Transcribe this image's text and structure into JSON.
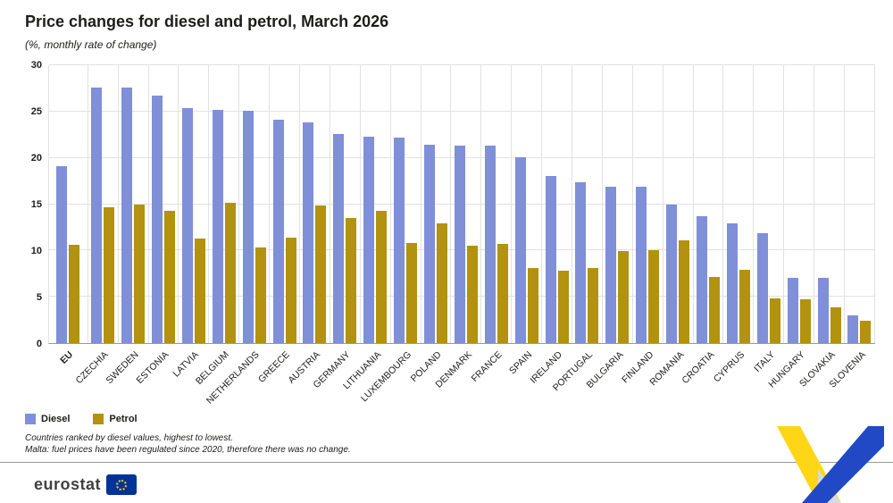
{
  "title": "Price changes for diesel and petrol, March 2026",
  "subtitle": "(%, monthly rate of change)",
  "legend": [
    {
      "label": "Diesel",
      "color": "#7f8fd8"
    },
    {
      "label": "Petrol",
      "color": "#b2920f"
    }
  ],
  "footnotes": [
    "Countries ranked by diesel values, highest to lowest.",
    "Malta: fuel prices have been regulated since 2020, therefore there was no change."
  ],
  "footer": {
    "logo_text": "eurostat"
  },
  "colors": {
    "diesel": "#7f8fd8",
    "petrol": "#b2920f",
    "eu_flag_blue": "#003399",
    "ribbon_yellow": "#ffd617",
    "ribbon_blue": "#2149c6"
  },
  "chart_data": {
    "type": "bar",
    "title": "Price changes for diesel and petrol, March 2026",
    "subtitle": "(%, monthly rate of change)",
    "xlabel": "",
    "ylabel": "",
    "ylim": [
      0,
      30
    ],
    "yticks": [
      0,
      5,
      10,
      15,
      20,
      25,
      30
    ],
    "grid": true,
    "legend_position": "bottom-left",
    "categories": [
      "EU",
      "CZECHIA",
      "SWEDEN",
      "ESTONIA",
      "LATVIA",
      "BELGIUM",
      "NETHERLANDS",
      "GREECE",
      "AUSTRIA",
      "GERMANY",
      "LITHUANIA",
      "LUXEMBOURG",
      "POLAND",
      "DENMARK",
      "FRANCE",
      "SPAIN",
      "IRELAND",
      "PORTUGAL",
      "BULGARIA",
      "FINLAND",
      "ROMANIA",
      "CROATIA",
      "CYPRUS",
      "ITALY",
      "HUNGARY",
      "SLOVAKIA",
      "SLOVENIA"
    ],
    "series": [
      {
        "name": "Diesel",
        "color": "#7f8fd8",
        "values": [
          19.1,
          27.6,
          27.6,
          26.7,
          25.4,
          25.2,
          25.1,
          24.1,
          23.8,
          22.6,
          22.3,
          22.2,
          21.4,
          21.3,
          21.3,
          20.1,
          18.0,
          17.4,
          16.9,
          16.9,
          15.0,
          13.7,
          12.9,
          11.9,
          7.0,
          7.0,
          3.0
        ]
      },
      {
        "name": "Petrol",
        "color": "#b2920f",
        "values": [
          10.6,
          14.7,
          15.0,
          14.3,
          11.3,
          15.1,
          10.3,
          11.4,
          14.9,
          13.5,
          14.3,
          10.8,
          12.9,
          10.5,
          10.7,
          8.1,
          7.8,
          8.1,
          9.9,
          10.0,
          11.1,
          7.1,
          7.9,
          4.8,
          4.7,
          3.9,
          2.4
        ]
      }
    ]
  }
}
